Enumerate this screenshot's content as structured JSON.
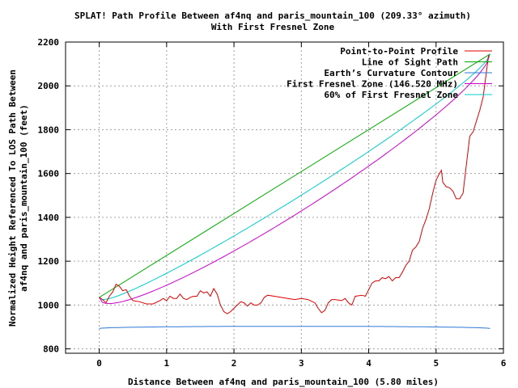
{
  "chart_data": {
    "type": "line",
    "title": "SPLAT! Path Profile Between af4nq and paris_mountain_100 (209.33° azimuth)",
    "subtitle": "With First Fresnel Zone",
    "xlabel": "Distance Between af4nq and paris_mountain_100 (5.80 miles)",
    "ylabel_line1": "Normalized Height Referenced To LOS Path Between",
    "ylabel_line2": "af4nq and paris_mountain_100 (feet)",
    "xlim": [
      -0.5,
      6
    ],
    "ylim": [
      780,
      2200
    ],
    "x_ticks": [
      0,
      1,
      2,
      3,
      4,
      5,
      6
    ],
    "y_ticks": [
      800,
      1000,
      1200,
      1400,
      1600,
      1800,
      2000,
      2200
    ],
    "grid": true,
    "legend_position": "top-right",
    "series": [
      {
        "name": "Point-to-Point Profile",
        "color": "#dd0000",
        "points": [
          [
            0,
            1035
          ],
          [
            0.05,
            1025
          ],
          [
            0.1,
            1010
          ],
          [
            0.15,
            1040
          ],
          [
            0.2,
            1060
          ],
          [
            0.25,
            1095
          ],
          [
            0.3,
            1085
          ],
          [
            0.35,
            1065
          ],
          [
            0.4,
            1070
          ],
          [
            0.45,
            1040
          ],
          [
            0.5,
            1020
          ],
          [
            0.6,
            1015
          ],
          [
            0.7,
            1005
          ],
          [
            0.8,
            1005
          ],
          [
            0.9,
            1020
          ],
          [
            0.95,
            1030
          ],
          [
            1.0,
            1020
          ],
          [
            1.05,
            1040
          ],
          [
            1.1,
            1030
          ],
          [
            1.15,
            1030
          ],
          [
            1.2,
            1050
          ],
          [
            1.25,
            1030
          ],
          [
            1.3,
            1025
          ],
          [
            1.35,
            1035
          ],
          [
            1.4,
            1040
          ],
          [
            1.45,
            1040
          ],
          [
            1.5,
            1065
          ],
          [
            1.55,
            1055
          ],
          [
            1.6,
            1060
          ],
          [
            1.65,
            1040
          ],
          [
            1.7,
            1075
          ],
          [
            1.75,
            1050
          ],
          [
            1.8,
            1000
          ],
          [
            1.85,
            970
          ],
          [
            1.9,
            960
          ],
          [
            1.95,
            970
          ],
          [
            2.0,
            985
          ],
          [
            2.05,
            1000
          ],
          [
            2.1,
            1015
          ],
          [
            2.15,
            1010
          ],
          [
            2.2,
            995
          ],
          [
            2.25,
            1010
          ],
          [
            2.3,
            1000
          ],
          [
            2.35,
            1000
          ],
          [
            2.4,
            1010
          ],
          [
            2.45,
            1035
          ],
          [
            2.5,
            1045
          ],
          [
            2.6,
            1040
          ],
          [
            2.7,
            1035
          ],
          [
            2.8,
            1030
          ],
          [
            2.9,
            1025
          ],
          [
            3.0,
            1030
          ],
          [
            3.1,
            1025
          ],
          [
            3.2,
            1010
          ],
          [
            3.25,
            985
          ],
          [
            3.3,
            965
          ],
          [
            3.35,
            975
          ],
          [
            3.4,
            1010
          ],
          [
            3.45,
            1025
          ],
          [
            3.5,
            1025
          ],
          [
            3.6,
            1020
          ],
          [
            3.65,
            1030
          ],
          [
            3.7,
            1010
          ],
          [
            3.75,
            1000
          ],
          [
            3.8,
            1040
          ],
          [
            3.9,
            1045
          ],
          [
            3.95,
            1040
          ],
          [
            4.0,
            1070
          ],
          [
            4.05,
            1100
          ],
          [
            4.1,
            1110
          ],
          [
            4.15,
            1110
          ],
          [
            4.2,
            1125
          ],
          [
            4.25,
            1120
          ],
          [
            4.3,
            1130
          ],
          [
            4.35,
            1110
          ],
          [
            4.4,
            1125
          ],
          [
            4.45,
            1125
          ],
          [
            4.5,
            1150
          ],
          [
            4.55,
            1180
          ],
          [
            4.6,
            1200
          ],
          [
            4.65,
            1250
          ],
          [
            4.7,
            1265
          ],
          [
            4.75,
            1290
          ],
          [
            4.8,
            1350
          ],
          [
            4.85,
            1390
          ],
          [
            4.9,
            1440
          ],
          [
            4.95,
            1510
          ],
          [
            5.0,
            1570
          ],
          [
            5.05,
            1600
          ],
          [
            5.08,
            1615
          ],
          [
            5.1,
            1560
          ],
          [
            5.15,
            1540
          ],
          [
            5.2,
            1535
          ],
          [
            5.25,
            1520
          ],
          [
            5.3,
            1485
          ],
          [
            5.35,
            1485
          ],
          [
            5.4,
            1510
          ],
          [
            5.45,
            1640
          ],
          [
            5.5,
            1770
          ],
          [
            5.55,
            1790
          ],
          [
            5.6,
            1840
          ],
          [
            5.65,
            1890
          ],
          [
            5.7,
            1950
          ],
          [
            5.75,
            2070
          ],
          [
            5.78,
            2140
          ]
        ]
      },
      {
        "name": "Line of Sight Path",
        "color": "#00aa00",
        "from": [
          0,
          1035
        ],
        "to": [
          5.8,
          2145
        ]
      },
      {
        "name": "Earth’s Curvature Contour",
        "color": "#2c78d6",
        "level": 893,
        "bulge": 10
      },
      {
        "name": "First Fresnel Zone (146.520 MHz)",
        "color": "#cc00cc",
        "depth_max": 180
      },
      {
        "name": "60% of First Fresnel Zone",
        "color": "#00cccc",
        "depth_ratio": 0.6
      }
    ]
  }
}
